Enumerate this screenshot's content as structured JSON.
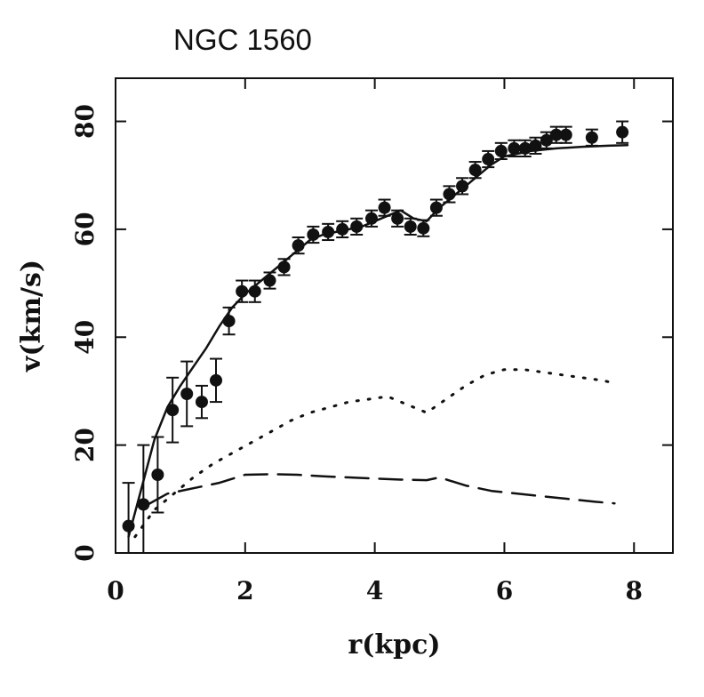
{
  "chart_data": {
    "type": "line",
    "title": "NGC 1560",
    "xlabel": "r(kpc)",
    "ylabel": "v(km/s)",
    "xlim": [
      0,
      8.6
    ],
    "ylim": [
      0,
      88
    ],
    "x_ticks": [
      0,
      2,
      4,
      6,
      8
    ],
    "y_ticks": [
      0,
      20,
      40,
      60,
      80
    ],
    "grid": false,
    "legend": "none",
    "observed": {
      "marker": "filled-circle",
      "color": "#111111",
      "x": [
        0.2,
        0.43,
        0.65,
        0.88,
        1.1,
        1.33,
        1.55,
        1.75,
        1.95,
        2.15,
        2.38,
        2.6,
        2.82,
        3.05,
        3.28,
        3.5,
        3.72,
        3.95,
        4.15,
        4.35,
        4.55,
        4.75,
        4.95,
        5.15,
        5.35,
        5.55,
        5.75,
        5.95,
        6.15,
        6.32,
        6.48,
        6.65,
        6.8,
        6.95,
        7.35,
        7.82
      ],
      "y": [
        5,
        9,
        14.5,
        26.5,
        29.5,
        28,
        32,
        43,
        48.5,
        48.5,
        50.5,
        53,
        57,
        59,
        59.5,
        60,
        60.5,
        62,
        64,
        62,
        60.5,
        60.2,
        64,
        66.5,
        68,
        71,
        73,
        74.5,
        75,
        75,
        75.5,
        76.5,
        77.5,
        77.5,
        77,
        78
      ],
      "err": [
        8,
        11,
        7,
        6,
        6,
        3,
        4,
        2.5,
        2,
        2,
        1.5,
        1.5,
        1.5,
        1.5,
        1.5,
        1.5,
        1.5,
        1.5,
        1.5,
        1.5,
        1.5,
        1.5,
        1.5,
        1.5,
        1.5,
        1.5,
        1.5,
        1.5,
        1.5,
        1.5,
        1.5,
        1.5,
        1.5,
        1.5,
        1.5,
        2
      ]
    },
    "series": [
      {
        "style": "solid",
        "color": "#111111",
        "x": [
          0.2,
          0.4,
          0.6,
          0.8,
          1.0,
          1.2,
          1.4,
          1.6,
          1.8,
          2.0,
          2.2,
          2.4,
          2.6,
          2.8,
          3.0,
          3.2,
          3.4,
          3.6,
          3.8,
          4.0,
          4.2,
          4.4,
          4.6,
          4.8,
          5.0,
          5.2,
          5.4,
          5.6,
          5.8,
          6.0,
          6.4,
          6.8,
          7.2,
          7.6,
          7.9
        ],
        "y": [
          3,
          12,
          21,
          27,
          31,
          34.5,
          38,
          42,
          45.5,
          48,
          50,
          52,
          54,
          56,
          58,
          59,
          59.5,
          60,
          60.5,
          61.5,
          62.5,
          63.5,
          62,
          61.5,
          64,
          66,
          68,
          70,
          72,
          73.5,
          74.5,
          75,
          75.3,
          75.5,
          75.6
        ]
      },
      {
        "style": "dotted",
        "color": "#111111",
        "x": [
          0.3,
          0.6,
          0.9,
          1.2,
          1.5,
          1.8,
          2.1,
          2.4,
          2.7,
          3.0,
          3.3,
          3.6,
          3.9,
          4.2,
          4.5,
          4.8,
          5.1,
          5.4,
          5.7,
          6.0,
          6.3,
          6.6,
          6.9,
          7.2,
          7.5,
          7.7
        ],
        "y": [
          3,
          8,
          11,
          14,
          16.5,
          18.5,
          20.5,
          22.5,
          24.5,
          26,
          27,
          28,
          28.5,
          29,
          27.5,
          26,
          28.5,
          31,
          33,
          34,
          34,
          33.5,
          33,
          32.5,
          32,
          31.5
        ]
      },
      {
        "style": "dashed",
        "color": "#111111",
        "x": [
          0.5,
          0.8,
          1.2,
          1.6,
          2.0,
          2.4,
          2.8,
          3.2,
          3.6,
          4.0,
          4.4,
          4.8,
          5.0,
          5.4,
          5.8,
          6.2,
          6.6,
          7.0,
          7.4,
          7.7
        ],
        "y": [
          9,
          11,
          12,
          13,
          14.5,
          14.6,
          14.5,
          14.2,
          14,
          13.8,
          13.6,
          13.5,
          14,
          12.5,
          11.5,
          11,
          10.5,
          10,
          9.5,
          9.2
        ]
      }
    ]
  }
}
